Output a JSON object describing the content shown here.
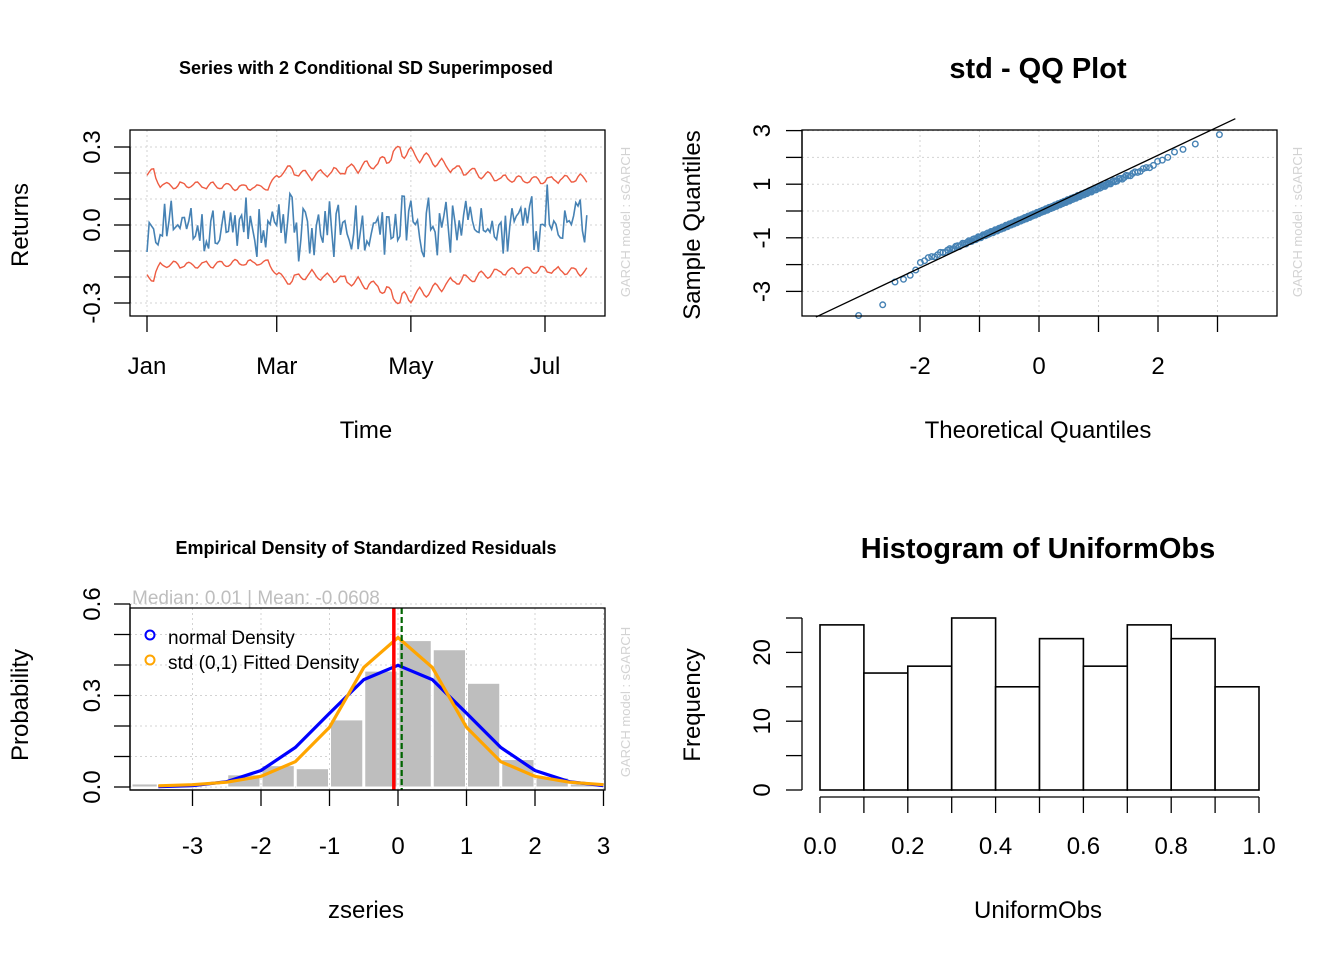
{
  "colors": {
    "returns_series": "#4682B4",
    "sd_bands": "#EE5C42",
    "qq_points": "#4682B4",
    "grid": "#d3d3d3",
    "histogram_fill": "#bebebe",
    "normal_density": "#0000ff",
    "std_density": "#ffa500",
    "median_line": "#ff0000",
    "mean_line": "#006400",
    "side_text": "#d3d3d3"
  },
  "chart_data": [
    {
      "type": "line",
      "title": "Series with 2 Conditional SD Superimposed",
      "xlabel": "Time",
      "ylabel": "Returns",
      "side_label": "GARCH model :  sGARCH",
      "x_ticks": [
        "Jan",
        "Mar",
        "May",
        "Jul"
      ],
      "y_ticks": [
        "-0.3",
        "0.0",
        "0.3"
      ],
      "ylim": [
        -0.35,
        0.35
      ],
      "grid": true,
      "x_day_positions": [
        0,
        59,
        120,
        181
      ],
      "n_days": 200,
      "series": [
        {
          "role": "returns",
          "seed": 17,
          "sd_points": [
            [
              0,
              0.105
            ],
            [
              3,
              0.115
            ],
            [
              6,
              0.085
            ],
            [
              20,
              0.085
            ],
            [
              55,
              0.08
            ],
            [
              62,
              0.12
            ],
            [
              75,
              0.105
            ],
            [
              105,
              0.13
            ],
            [
              115,
              0.16
            ],
            [
              125,
              0.145
            ],
            [
              140,
              0.12
            ],
            [
              160,
              0.1
            ],
            [
              175,
              0.095
            ],
            [
              200,
              0.1
            ]
          ]
        },
        {
          "role": "upper_2sd"
        },
        {
          "role": "lower_2sd"
        }
      ]
    },
    {
      "type": "scatter",
      "title": "std - QQ Plot",
      "xlabel": "Theoretical Quantiles",
      "ylabel": "Sample Quantiles",
      "side_label": "GARCH model :  sGARCH",
      "x_ticks": [
        "-2",
        "0",
        "2"
      ],
      "y_ticks": [
        "-3",
        "-1",
        "1",
        "3"
      ],
      "xlim": [
        -3.75,
        3.75
      ],
      "ylim": [
        -3.9,
        3.1
      ],
      "grid": true,
      "n_points": 200,
      "points_sorted_desc_top": [
        2.85,
        2.5,
        2.3,
        2.2,
        2.0,
        1.9,
        1.85,
        1.7
      ],
      "points_sorted_asc_bottom": [
        -3.9,
        -3.5,
        -2.65,
        -2.55,
        -2.4,
        -2.2
      ],
      "reference_line": {
        "slope": 1.05,
        "intercept": -0.02
      }
    },
    {
      "type": "bar",
      "title": "Empirical Density of Standardized Residuals",
      "subtitle": "Median:  0.01 | Mean:  -0.0608",
      "xlabel": "zseries",
      "ylabel": "Probability",
      "side_label": "GARCH model :  sGARCH",
      "x_ticks": [
        "-3",
        "-2",
        "-1",
        "0",
        "1",
        "2",
        "3"
      ],
      "y_ticks": [
        "0.0",
        "0.3",
        "0.6"
      ],
      "xlim": [
        -3.9,
        3.0
      ],
      "ylim": [
        0,
        0.62
      ],
      "grid": true,
      "bin_edges": [
        -4.0,
        -3.5,
        -3.0,
        -2.5,
        -2.0,
        -1.5,
        -1.0,
        -0.5,
        0.0,
        0.5,
        1.0,
        1.5,
        2.0,
        2.5,
        3.0
      ],
      "bin_values": [
        0.01,
        0.01,
        0.0,
        0.04,
        0.07,
        0.06,
        0.22,
        0.38,
        0.48,
        0.45,
        0.34,
        0.09,
        0.03,
        0.01
      ],
      "density_x": [
        -3.5,
        -3.0,
        -2.5,
        -2.0,
        -1.5,
        -1.0,
        -0.5,
        0.0,
        0.5,
        1.0,
        1.5,
        2.0,
        2.5,
        3.0
      ],
      "legend": [
        "normal Density",
        "std (0,1) Fitted Density"
      ],
      "legend_position": "top-left",
      "median": 0.01,
      "mean": -0.0608
    },
    {
      "type": "bar",
      "title": "Histogram of UniformObs",
      "xlabel": "UniformObs",
      "ylabel": "Frequency",
      "x_ticks": [
        "0.0",
        "0.2",
        "0.4",
        "0.6",
        "0.8",
        "1.0"
      ],
      "y_ticks": [
        "0",
        "10",
        "20"
      ],
      "ylim": [
        0,
        25
      ],
      "bin_edges": [
        0.0,
        0.1,
        0.2,
        0.3,
        0.4,
        0.5,
        0.6,
        0.7,
        0.8,
        0.9,
        1.0
      ],
      "counts": [
        24,
        17,
        18,
        25,
        15,
        22,
        18,
        24,
        22,
        15
      ]
    }
  ]
}
